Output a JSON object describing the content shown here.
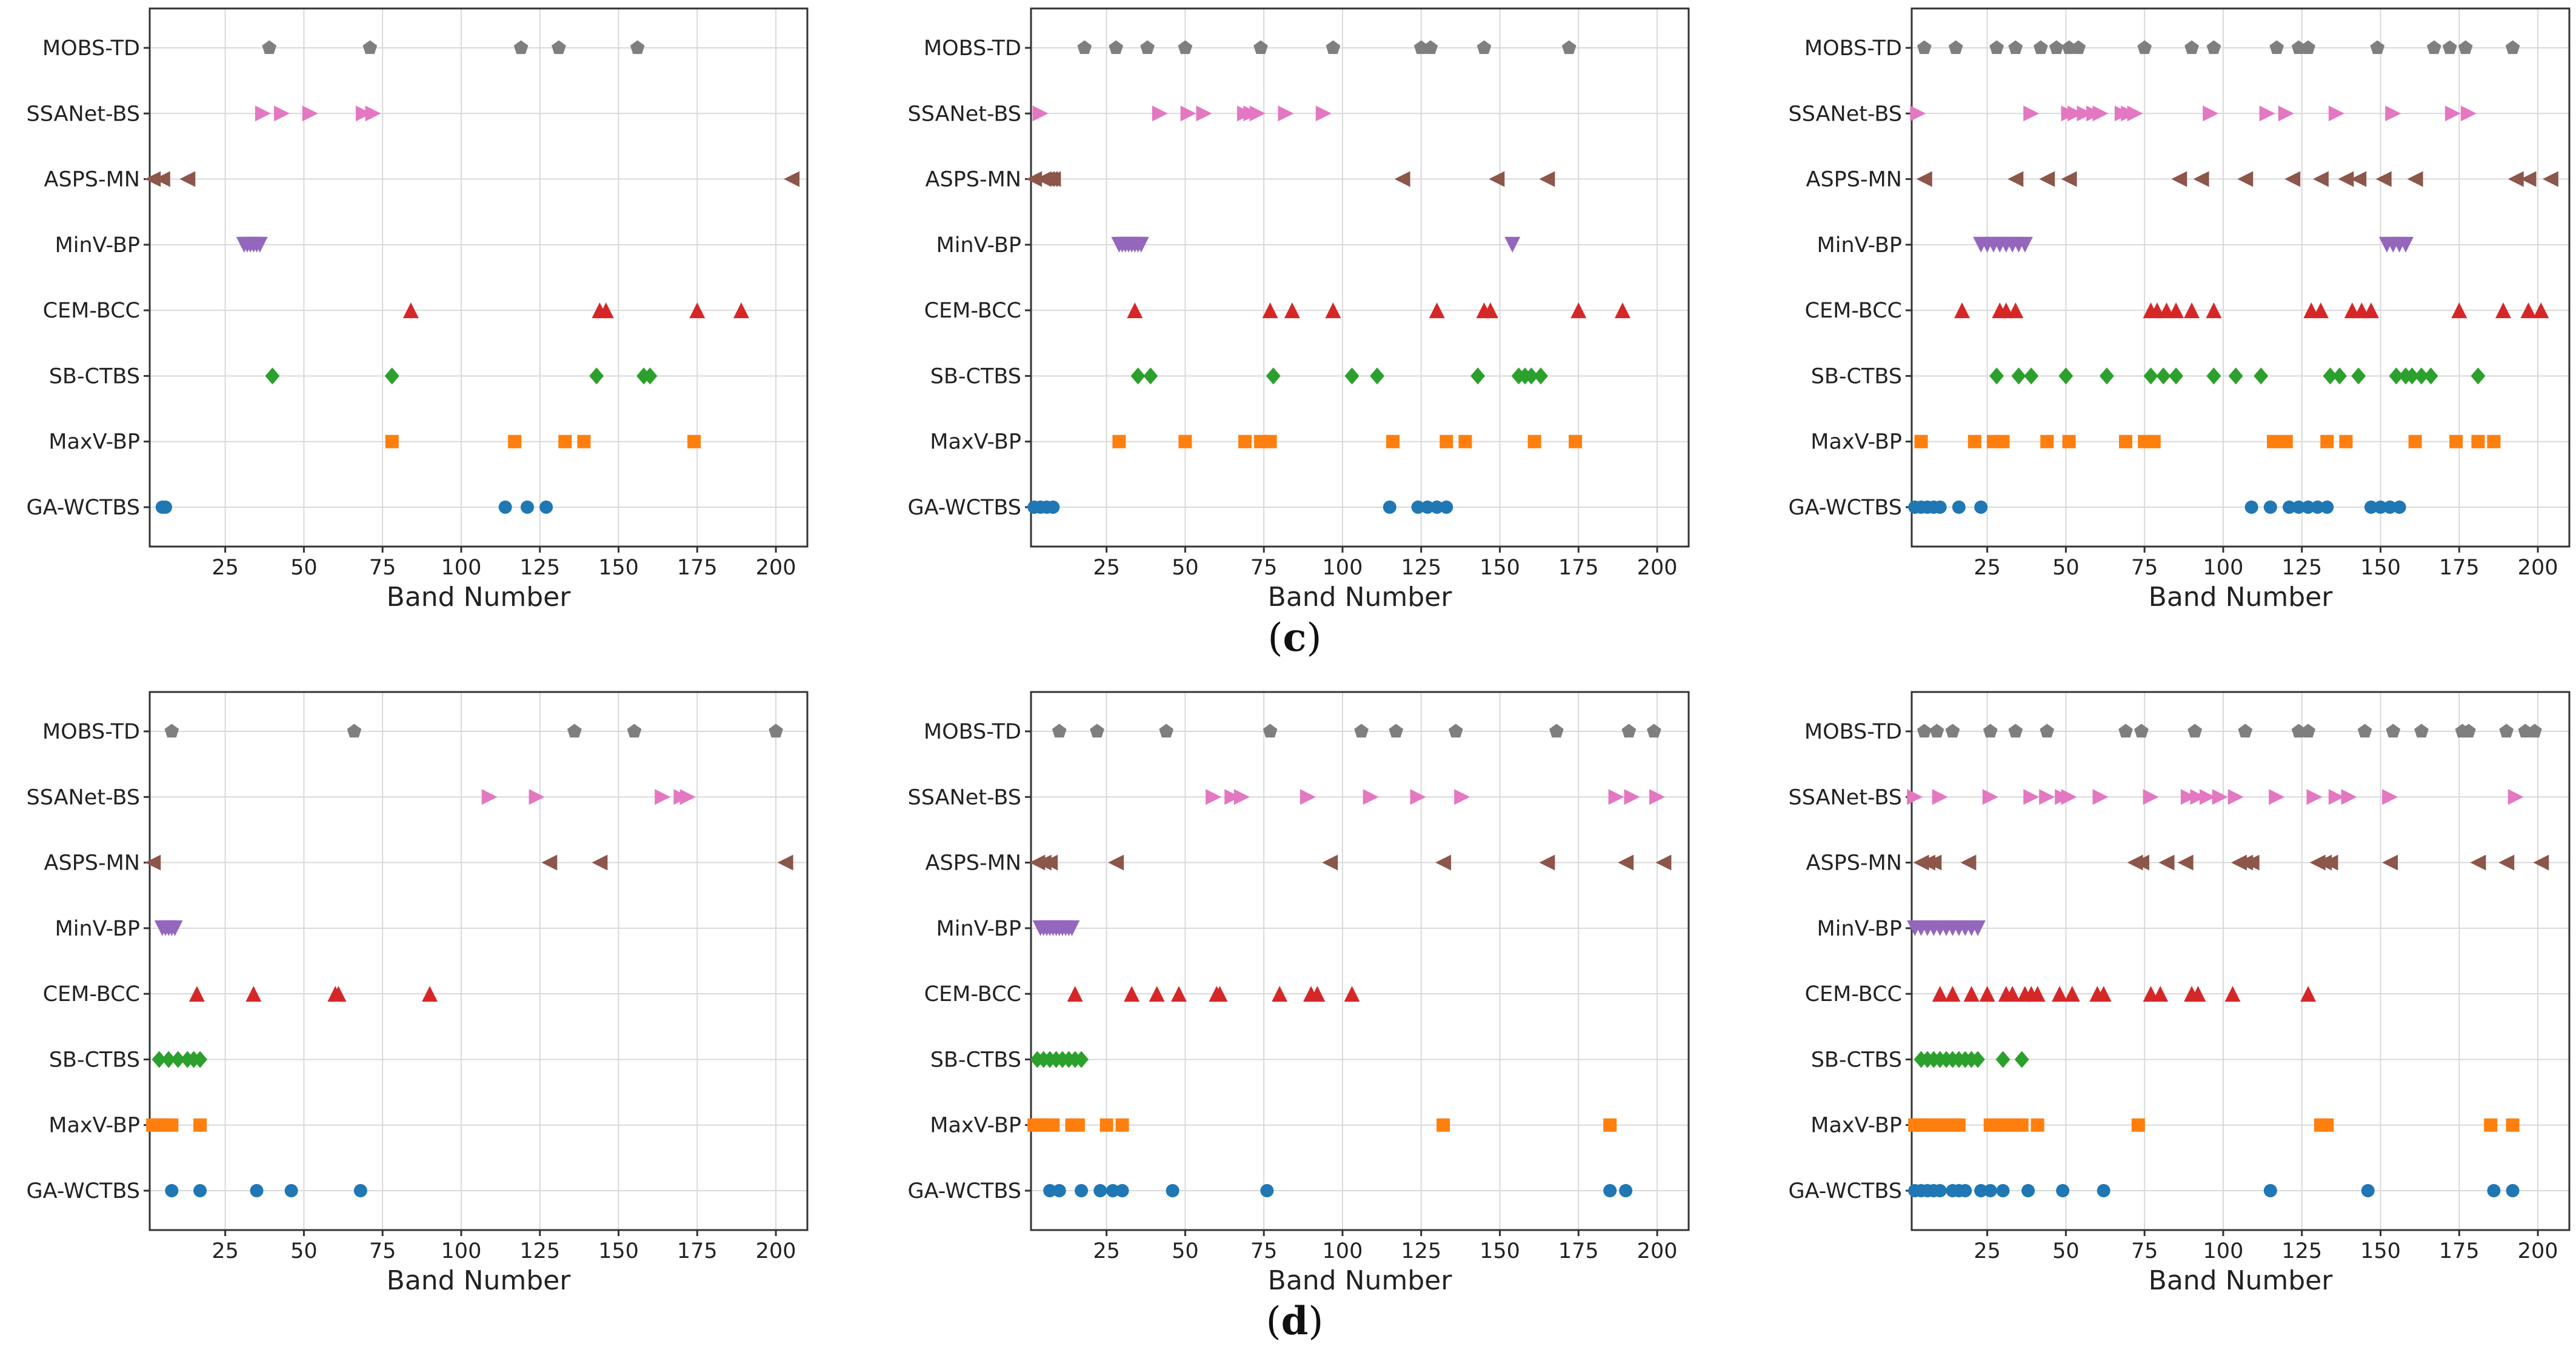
{
  "panel_labels": {
    "c": {
      "open": "(",
      "letter": "c",
      "close": ")"
    },
    "d": {
      "open": "(",
      "letter": "d",
      "close": ")"
    }
  },
  "methods": [
    "MOBS-TD",
    "SSANet-BS",
    "ASPS-MN",
    "MinV-BP",
    "CEM-BCC",
    "SB-CTBS",
    "MaxV-BP",
    "GA-WCTBS"
  ],
  "styles": {
    "MOBS-TD": {
      "marker": "pentagon",
      "color": "#7f7f7f"
    },
    "SSANet-BS": {
      "marker": "triangle-right",
      "color": "#e377c2"
    },
    "ASPS-MN": {
      "marker": "triangle-left",
      "color": "#8c564b"
    },
    "MinV-BP": {
      "marker": "triangle-down",
      "color": "#9467bd"
    },
    "CEM-BCC": {
      "marker": "triangle-up",
      "color": "#d62728"
    },
    "SB-CTBS": {
      "marker": "diamond",
      "color": "#2ca02c"
    },
    "MaxV-BP": {
      "marker": "square",
      "color": "#ff7f0e"
    },
    "GA-WCTBS": {
      "marker": "circle",
      "color": "#1f77b4"
    }
  },
  "chart_data": [
    {
      "type": "scatter",
      "xlabel": "Band Number",
      "xlim": [
        1,
        210
      ],
      "xticks": [
        25,
        50,
        75,
        100,
        125,
        150,
        175,
        200
      ],
      "series": [
        {
          "name": "MOBS-TD",
          "x": [
            39,
            71,
            119,
            131,
            156
          ]
        },
        {
          "name": "SSANet-BS",
          "x": [
            37,
            43,
            52,
            69,
            72
          ]
        },
        {
          "name": "ASPS-MN",
          "x": [
            2,
            5,
            13,
            205
          ]
        },
        {
          "name": "MinV-BP",
          "x": [
            31,
            32,
            33,
            34,
            35,
            36
          ]
        },
        {
          "name": "CEM-BCC",
          "x": [
            84,
            144,
            146,
            175,
            189
          ]
        },
        {
          "name": "SB-CTBS",
          "x": [
            40,
            78,
            143,
            158,
            160
          ]
        },
        {
          "name": "MaxV-BP",
          "x": [
            78,
            117,
            133,
            139,
            174
          ]
        },
        {
          "name": "GA-WCTBS",
          "x": [
            5,
            6,
            114,
            121,
            127
          ]
        }
      ]
    },
    {
      "type": "scatter",
      "xlabel": "Band Number",
      "xlim": [
        1,
        210
      ],
      "xticks": [
        25,
        50,
        75,
        100,
        125,
        150,
        175,
        200
      ],
      "series": [
        {
          "name": "MOBS-TD",
          "x": [
            18,
            28,
            38,
            50,
            74,
            97,
            125,
            128,
            145,
            172
          ]
        },
        {
          "name": "SSANet-BS",
          "x": [
            4,
            42,
            51,
            56,
            69,
            71,
            73,
            82,
            94
          ]
        },
        {
          "name": "ASPS-MN",
          "x": [
            2,
            5,
            6,
            7,
            8,
            119,
            149,
            165
          ]
        },
        {
          "name": "MinV-BP",
          "x": [
            29,
            30,
            31,
            32,
            33,
            34,
            35,
            36,
            154
          ]
        },
        {
          "name": "CEM-BCC",
          "x": [
            34,
            77,
            84,
            97,
            130,
            145,
            147,
            175,
            189
          ]
        },
        {
          "name": "SB-CTBS",
          "x": [
            35,
            39,
            78,
            103,
            111,
            143,
            156,
            158,
            160,
            163
          ]
        },
        {
          "name": "MaxV-BP",
          "x": [
            29,
            50,
            69,
            74,
            77,
            116,
            133,
            139,
            161,
            174
          ]
        },
        {
          "name": "GA-WCTBS",
          "x": [
            2,
            4,
            6,
            8,
            115,
            124,
            127,
            130,
            133
          ]
        }
      ]
    },
    {
      "type": "scatter",
      "xlabel": "Band Number",
      "xlim": [
        1,
        210
      ],
      "xticks": [
        25,
        50,
        75,
        100,
        125,
        150,
        175,
        200
      ],
      "series": [
        {
          "name": "MOBS-TD",
          "x": [
            5,
            15,
            28,
            34,
            42,
            47,
            51,
            54,
            75,
            90,
            97,
            117,
            124,
            127,
            149,
            167,
            172,
            177,
            192
          ]
        },
        {
          "name": "SSANet-BS",
          "x": [
            3,
            39,
            51,
            53,
            56,
            59,
            61,
            68,
            70,
            72,
            96,
            114,
            120,
            136,
            154,
            173,
            178
          ]
        },
        {
          "name": "ASPS-MN",
          "x": [
            5,
            34,
            44,
            51,
            86,
            93,
            107,
            122,
            131,
            139,
            143,
            151,
            161,
            193,
            197,
            204
          ]
        },
        {
          "name": "MinV-BP",
          "x": [
            23,
            25,
            27,
            29,
            31,
            33,
            35,
            37,
            152,
            154,
            156,
            158
          ]
        },
        {
          "name": "CEM-BCC",
          "x": [
            17,
            29,
            31,
            34,
            77,
            79,
            82,
            85,
            90,
            97,
            128,
            131,
            141,
            144,
            147,
            175,
            189,
            197,
            201
          ]
        },
        {
          "name": "SB-CTBS",
          "x": [
            28,
            35,
            39,
            50,
            63,
            77,
            81,
            85,
            97,
            104,
            112,
            134,
            137,
            143,
            155,
            158,
            160,
            163,
            166,
            181
          ]
        },
        {
          "name": "MaxV-BP",
          "x": [
            4,
            21,
            27,
            30,
            44,
            51,
            69,
            75,
            78,
            116,
            120,
            133,
            139,
            161,
            174,
            181,
            186
          ]
        },
        {
          "name": "GA-WCTBS",
          "x": [
            2,
            4,
            6,
            8,
            10,
            16,
            23,
            109,
            115,
            121,
            124,
            127,
            130,
            133,
            147,
            150,
            153,
            156
          ]
        }
      ]
    },
    {
      "type": "scatter",
      "xlabel": "Band Number",
      "xlim": [
        1,
        210
      ],
      "xticks": [
        25,
        50,
        75,
        100,
        125,
        150,
        175,
        200
      ],
      "series": [
        {
          "name": "MOBS-TD",
          "x": [
            8,
            66,
            136,
            155,
            200
          ]
        },
        {
          "name": "SSANet-BS",
          "x": [
            109,
            124,
            164,
            170,
            172
          ]
        },
        {
          "name": "ASPS-MN",
          "x": [
            2,
            128,
            144,
            203
          ]
        },
        {
          "name": "MinV-BP",
          "x": [
            5,
            6,
            7,
            8,
            9
          ]
        },
        {
          "name": "CEM-BCC",
          "x": [
            16,
            34,
            60,
            61,
            90
          ]
        },
        {
          "name": "SB-CTBS",
          "x": [
            4,
            7,
            10,
            13,
            15,
            17
          ]
        },
        {
          "name": "MaxV-BP",
          "x": [
            2,
            4,
            6,
            8,
            17
          ]
        },
        {
          "name": "GA-WCTBS",
          "x": [
            8,
            17,
            35,
            46,
            68
          ]
        }
      ]
    },
    {
      "type": "scatter",
      "xlabel": "Band Number",
      "xlim": [
        1,
        210
      ],
      "xticks": [
        25,
        50,
        75,
        100,
        125,
        150,
        175,
        200
      ],
      "series": [
        {
          "name": "MOBS-TD",
          "x": [
            10,
            22,
            44,
            77,
            106,
            117,
            136,
            168,
            191,
            199
          ]
        },
        {
          "name": "SSANet-BS",
          "x": [
            59,
            65,
            68,
            89,
            109,
            124,
            138,
            187,
            192,
            200
          ]
        },
        {
          "name": "ASPS-MN",
          "x": [
            3,
            5,
            7,
            28,
            96,
            132,
            165,
            190,
            202
          ]
        },
        {
          "name": "MinV-BP",
          "x": [
            4,
            5,
            6,
            7,
            8,
            9,
            10,
            11,
            12,
            13,
            14
          ]
        },
        {
          "name": "CEM-BCC",
          "x": [
            15,
            33,
            41,
            48,
            60,
            61,
            80,
            90,
            92,
            103
          ]
        },
        {
          "name": "SB-CTBS",
          "x": [
            3,
            5,
            7,
            9,
            11,
            13,
            15,
            17
          ]
        },
        {
          "name": "MaxV-BP",
          "x": [
            2,
            4,
            6,
            8,
            14,
            16,
            25,
            30,
            132,
            185
          ]
        },
        {
          "name": "GA-WCTBS",
          "x": [
            7,
            10,
            17,
            23,
            27,
            30,
            46,
            76,
            185,
            190
          ]
        }
      ]
    },
    {
      "type": "scatter",
      "xlabel": "Band Number",
      "xlim": [
        1,
        210
      ],
      "xticks": [
        25,
        50,
        75,
        100,
        125,
        150,
        175,
        200
      ],
      "series": [
        {
          "name": "MOBS-TD",
          "x": [
            5,
            9,
            14,
            26,
            34,
            44,
            69,
            74,
            91,
            107,
            124,
            127,
            145,
            154,
            163,
            176,
            178,
            190,
            196,
            199
          ]
        },
        {
          "name": "SSANet-BS",
          "x": [
            2,
            10,
            26,
            39,
            44,
            49,
            51,
            61,
            77,
            89,
            92,
            95,
            99,
            104,
            117,
            129,
            136,
            140,
            153,
            193
          ]
        },
        {
          "name": "ASPS-MN",
          "x": [
            4,
            6,
            8,
            19,
            72,
            74,
            82,
            88,
            105,
            107,
            109,
            130,
            132,
            134,
            153,
            181,
            190,
            201
          ]
        },
        {
          "name": "MinV-BP",
          "x": [
            2,
            4,
            6,
            8,
            10,
            12,
            14,
            16,
            18,
            20,
            22
          ]
        },
        {
          "name": "CEM-BCC",
          "x": [
            10,
            14,
            20,
            25,
            31,
            33,
            37,
            39,
            41,
            48,
            52,
            60,
            62,
            77,
            80,
            90,
            92,
            103,
            127
          ]
        },
        {
          "name": "SB-CTBS",
          "x": [
            4,
            6,
            8,
            10,
            12,
            14,
            16,
            18,
            20,
            22,
            30,
            36
          ]
        },
        {
          "name": "MaxV-BP",
          "x": [
            2,
            4,
            6,
            8,
            10,
            12,
            14,
            16,
            26,
            28,
            31,
            33,
            36,
            41,
            73,
            131,
            133,
            185,
            192
          ]
        },
        {
          "name": "GA-WCTBS",
          "x": [
            2,
            4,
            6,
            8,
            10,
            14,
            16,
            18,
            23,
            26,
            30,
            38,
            49,
            62,
            115,
            146,
            186,
            192
          ]
        }
      ]
    }
  ]
}
